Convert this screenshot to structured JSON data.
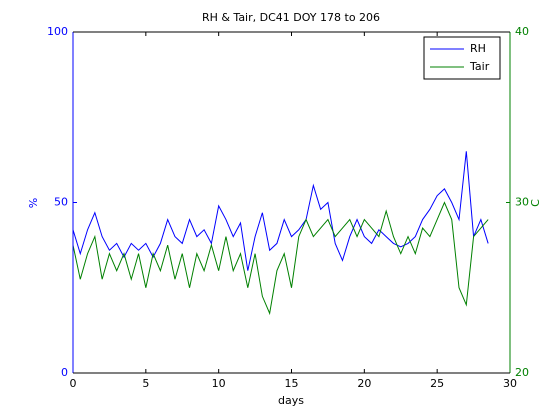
{
  "chart_data": {
    "type": "line",
    "title": "RH & Tair, DC41 DOY 178 to 206",
    "xlabel": "days",
    "ylabel": "%",
    "y2label": "C",
    "x": [
      0,
      0.5,
      1,
      1.5,
      2,
      2.5,
      3,
      3.5,
      4,
      4.5,
      5,
      5.5,
      6,
      6.5,
      7,
      7.5,
      8,
      8.5,
      9,
      9.5,
      10,
      10.5,
      11,
      11.5,
      12,
      12.5,
      13,
      13.5,
      14,
      14.5,
      15,
      15.5,
      16,
      16.5,
      17,
      17.5,
      18,
      18.5,
      19,
      19.5,
      20,
      20.5,
      21,
      21.5,
      22,
      22.5,
      23,
      23.5,
      24,
      24.5,
      25,
      25.5,
      26,
      26.5,
      27,
      27.5,
      28,
      28.5
    ],
    "series": [
      {
        "name": "RH",
        "color": "#0000ff",
        "axis": "y",
        "values": [
          42,
          35,
          42,
          47,
          40,
          36,
          38,
          34,
          38,
          36,
          38,
          34,
          38,
          45,
          40,
          38,
          45,
          40,
          42,
          38,
          49,
          45,
          40,
          44,
          30,
          40,
          47,
          36,
          38,
          45,
          40,
          42,
          45,
          55,
          48,
          50,
          38,
          33,
          40,
          45,
          40,
          38,
          42,
          40,
          38,
          37,
          38,
          40,
          45,
          48,
          52,
          54,
          50,
          45,
          65,
          40,
          45,
          38
        ]
      },
      {
        "name": "Tair",
        "color": "#008000",
        "axis": "y2",
        "values": [
          27.5,
          25.5,
          27,
          28,
          25.5,
          27,
          26,
          27,
          25.5,
          27,
          25,
          27,
          26,
          27.5,
          25.5,
          27,
          25,
          27,
          26,
          27.5,
          26,
          28,
          26,
          27,
          25,
          27,
          24.5,
          23.5,
          26,
          27,
          25,
          28,
          29,
          28,
          28.5,
          29,
          28,
          28.5,
          29,
          28,
          29,
          28.5,
          28,
          29.5,
          28,
          27,
          28,
          27,
          28.5,
          28,
          29,
          30,
          29,
          25,
          24,
          28,
          28.5,
          29
        ]
      }
    ],
    "xlim": [
      0,
      30
    ],
    "xticks": [
      0,
      5,
      10,
      15,
      20,
      25,
      30
    ],
    "ylim": [
      0,
      100
    ],
    "yticks": [
      0,
      50,
      100
    ],
    "y2lim": [
      20,
      40
    ],
    "y2ticks": [
      20,
      30,
      40
    ],
    "legend": "upper right"
  }
}
